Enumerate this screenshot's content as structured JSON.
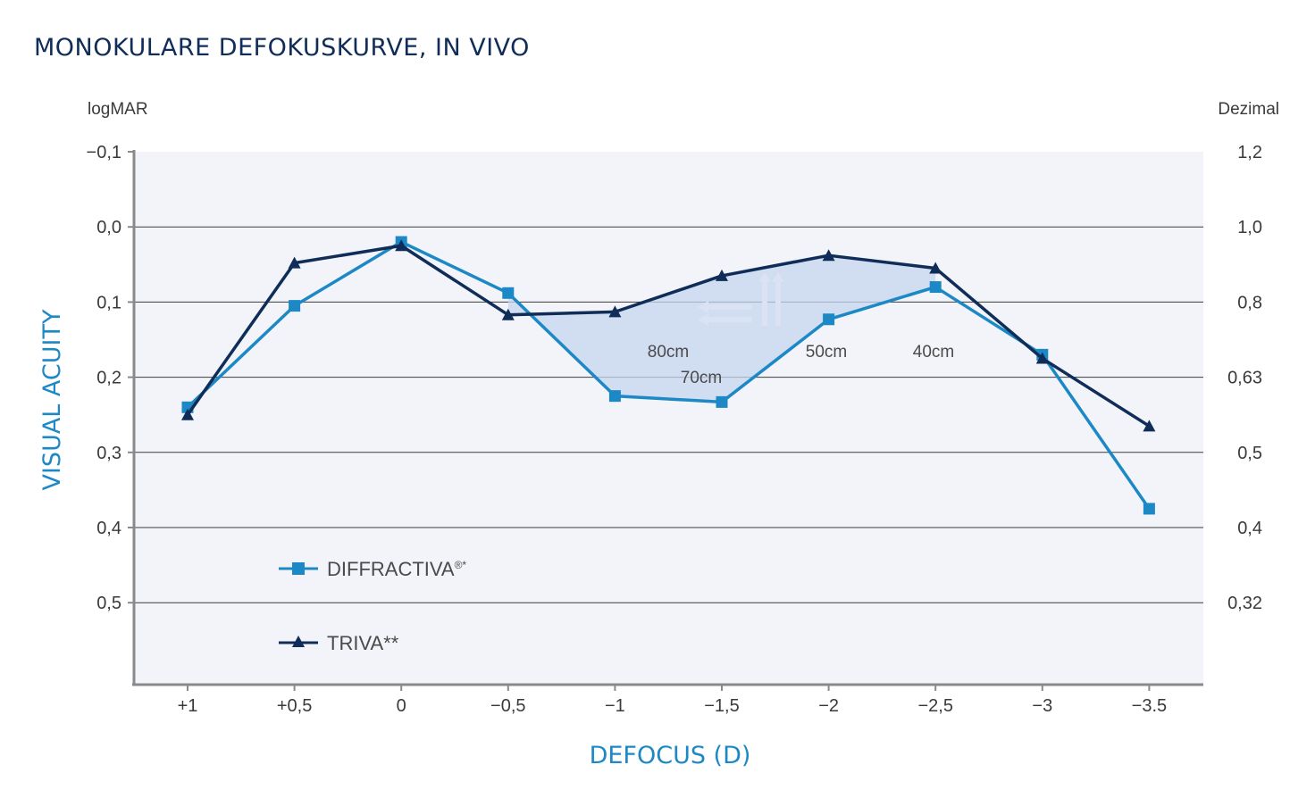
{
  "chart_data": {
    "type": "line",
    "title": "MONOKULARE DEFOKUSKURVE, IN VIVO",
    "left_unit": "logMAR",
    "right_unit": "Dezimal",
    "ylabel": "VISUAL ACUITY",
    "xlabel": "DEFOCUS (D)",
    "x": [
      1,
      0.5,
      0,
      -0.5,
      -1,
      -1.5,
      -2,
      -2.5,
      -3,
      -3.5
    ],
    "x_tick_labels": [
      "+1",
      "+0,5",
      "0",
      "−0,5",
      "−1",
      "−1,5",
      "−2",
      "−2,5",
      "−3",
      "−3.5"
    ],
    "ylim": [
      -0.1,
      0.6
    ],
    "y_inverted": true,
    "y_ticks": [
      -0.1,
      0,
      0.1,
      0.2,
      0.3,
      0.4,
      0.5
    ],
    "y_tick_labels": [
      "−0,1",
      "0,0",
      "0,1",
      "0,2",
      "0,3",
      "0,4",
      "0,5"
    ],
    "right_tick_labels": [
      "1,2",
      "1,0",
      "0,8",
      "0,63",
      "0,5",
      "0,4",
      "0,32"
    ],
    "grid": true,
    "legend_position": "bottom-left",
    "series": [
      {
        "name": "DIFFRACTIVA",
        "name_superscript": "®*",
        "marker": "square",
        "color": "#1d88c6",
        "values": [
          0.24,
          0.105,
          0.02,
          0.088,
          0.225,
          0.233,
          0.123,
          0.08,
          0.17,
          0.375
        ]
      },
      {
        "name": "TRIVA**",
        "name_superscript": "",
        "marker": "triangle",
        "color": "#0f2d58",
        "values": [
          0.25,
          0.048,
          0.025,
          0.117,
          0.113,
          0.065,
          0.038,
          0.055,
          0.175,
          0.265
        ]
      }
    ],
    "annotations": [
      "80cm",
      "70cm",
      "50cm",
      "40cm"
    ]
  },
  "colors": {
    "plot_background": "#f2f4f9",
    "shade": "#c5d5ee",
    "grid": "#3d3d3d",
    "axis": "#8a8a8a"
  }
}
